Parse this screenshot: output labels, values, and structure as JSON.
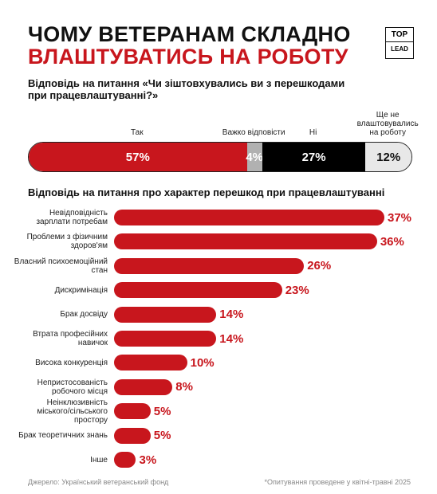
{
  "title_line1": "ЧОМУ ВЕТЕРАНАМ СКЛАДНО",
  "title_line2": "ВЛАШТУВАТИСЬ НА РОБОТУ",
  "logo": {
    "top": "TOP",
    "bottom": "LEAD"
  },
  "source": "Джерело: Український ветеранський фонд",
  "note": "*Опитування проведене у квітні-травні 2025",
  "chart_data": [
    {
      "type": "stacked-bar",
      "title": "Відповідь на питання «Чи зіштовхувались ви з перешкодами при працевлаштуванні?»",
      "series": [
        {
          "name": "Так",
          "color": "#c8161d",
          "values": [
            57
          ],
          "value_labels": [
            "57%"
          ]
        },
        {
          "name": "Важко відповісти",
          "color": "#b1b1b1",
          "values": [
            4
          ],
          "value_labels": [
            "4%"
          ]
        },
        {
          "name": "Ні",
          "color": "#000000",
          "values": [
            27
          ],
          "value_labels": [
            "27%"
          ]
        },
        {
          "name": "Ще не влаштовувались на роботу",
          "color": "#e8e8e8",
          "values": [
            12
          ],
          "value_labels": [
            "12%"
          ]
        }
      ]
    },
    {
      "type": "hbar",
      "title": "Відповідь на питання про характер перешкод при працевлаштуванні",
      "color": "#c8161d",
      "categories": [
        "Невідповідність зарплати потребам",
        "Проблеми з фізичним здоров'ям",
        "Власний психоемоційний стан",
        "Дискримінація",
        "Брак досвіду",
        "Втрата професійних навичок",
        "Висока конкуренція",
        "Непристосованість робочого місця",
        "Неінклюзивність міського/сільського простору",
        "Брак теоретичних знань",
        "Інше"
      ],
      "values": [
        37,
        36,
        26,
        23,
        14,
        14,
        10,
        8,
        5,
        5,
        3
      ],
      "value_labels": [
        "37%",
        "36%",
        "26%",
        "23%",
        "14%",
        "14%",
        "10%",
        "8%",
        "5%",
        "5%",
        "3%"
      ]
    }
  ]
}
